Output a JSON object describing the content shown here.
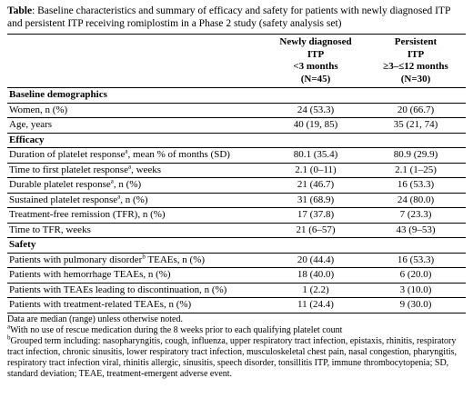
{
  "caption": {
    "label": "Table",
    "text": ": Baseline characteristics and summary of efficacy and safety for patients with newly diagnosed ITP and persistent ITP receiving romiplostim in a Phase 2 study (safety analysis set)"
  },
  "columns": [
    {
      "line1": "Newly diagnosed",
      "line2": "ITP",
      "line3": "<3 months",
      "line4": "(N=45)"
    },
    {
      "line1": "Persistent",
      "line2": "ITP",
      "line3": "≥3–≤12 months",
      "line4": "(N=30)"
    }
  ],
  "sections": [
    {
      "title": "Baseline demographics",
      "rows": [
        {
          "label": "Women, n (%)",
          "sup": "",
          "label_after": "",
          "v1": "24 (53.3)",
          "v2": "20 (66.7)"
        },
        {
          "label": "Age, years",
          "sup": "",
          "label_after": "",
          "v1": "40 (19, 85)",
          "v2": "35 (21, 74)"
        }
      ]
    },
    {
      "title": "Efficacy",
      "rows": [
        {
          "label": "Duration of platelet response",
          "sup": "a",
          "label_after": ", mean % of months (SD)",
          "v1": "80.1 (35.4)",
          "v2": "80.9 (29.9)"
        },
        {
          "label": "Time to first platelet response",
          "sup": "a",
          "label_after": ", weeks",
          "v1": "2.1 (0–11)",
          "v2": "2.1 (1–25)"
        },
        {
          "label": "Durable platelet response",
          "sup": "a",
          "label_after": ", n (%)",
          "v1": "21 (46.7)",
          "v2": "16 (53.3)"
        },
        {
          "label": "Sustained platelet response",
          "sup": "a",
          "label_after": ", n (%)",
          "v1": "31 (68.9)",
          "v2": "24 (80.0)"
        },
        {
          "label": "Treatment-free remission (TFR), n (%)",
          "sup": "",
          "label_after": "",
          "v1": "17 (37.8)",
          "v2": "7 (23.3)"
        },
        {
          "label": "Time to TFR, weeks",
          "sup": "",
          "label_after": "",
          "v1": "21 (6–57)",
          "v2": "43 (9–53)"
        }
      ]
    },
    {
      "title": "Safety",
      "rows": [
        {
          "label": "Patients with pulmonary disorder",
          "sup": "b",
          "label_after": " TEAEs, n (%)",
          "v1": "20 (44.4)",
          "v2": "16 (53.3)"
        },
        {
          "label": "Patients with hemorrhage TEAEs, n (%)",
          "sup": "",
          "label_after": "",
          "v1": "18 (40.0)",
          "v2": "6 (20.0)"
        },
        {
          "label": "Patients with TEAEs leading to discontinuation, n (%)",
          "sup": "",
          "label_after": "",
          "v1": "1 (2.2)",
          "v2": "3 (10.0)"
        },
        {
          "label": "Patients with treatment-related TEAEs, n (%)",
          "sup": "",
          "label_after": "",
          "v1": "11 (24.4)",
          "v2": "9 (30.0)"
        }
      ]
    }
  ],
  "notes": {
    "n1": "Data are median (range) unless otherwise noted.",
    "n2_sup": "a",
    "n2": "With no use of rescue medication during the 8 weeks prior to each qualifying platelet count",
    "n3_sup": "b",
    "n3": "Grouped term including: nasopharyngitis, cough, influenza, upper respiratory tract infection, epistaxis, rhinitis, respiratory tract infection, chronic sinusitis, lower respiratory tract infection, musculoskeletal chest pain, nasal congestion, pharyngitis, respiratory tract infection viral, rhinitis allergic, sinusitis, speech disorder, tonsillitis ITP, immune thrombocytopenia; SD, standard deviation; TEAE, treatment-emergent adverse event."
  }
}
